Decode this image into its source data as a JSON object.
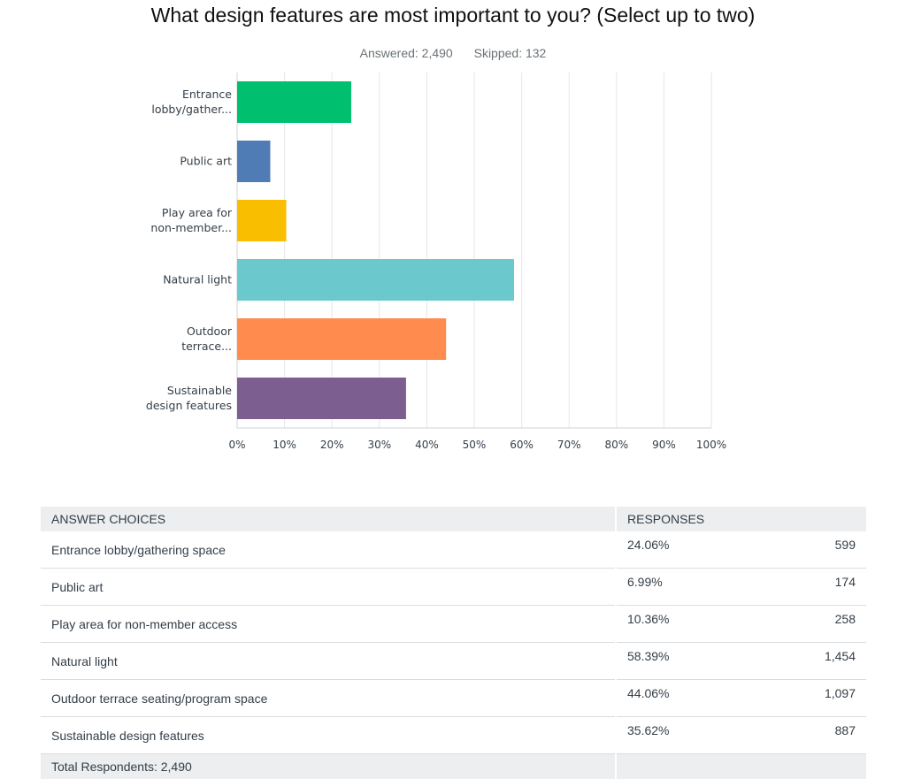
{
  "title": "What design features are most important to you? (Select up to two)",
  "answered": "Answered: 2,490",
  "skipped": "Skipped: 132",
  "colors": [
    "#00bf6f",
    "#507cb6",
    "#f9be00",
    "#6bc8cd",
    "#ff8b4f",
    "#7d5e90"
  ],
  "chart_data": {
    "type": "bar",
    "orientation": "horizontal",
    "categories": [
      [
        "Entrance",
        "lobby/gather..."
      ],
      [
        "Public art"
      ],
      [
        "Play area for",
        "non-member..."
      ],
      [
        "Natural light"
      ],
      [
        "Outdoor",
        "terrace..."
      ],
      [
        "Sustainable",
        "design features"
      ]
    ],
    "values": [
      24.06,
      6.99,
      10.36,
      58.39,
      44.06,
      35.62
    ],
    "xlim": [
      0,
      100
    ],
    "xticks": [
      "0%",
      "10%",
      "20%",
      "30%",
      "40%",
      "50%",
      "60%",
      "70%",
      "80%",
      "90%",
      "100%"
    ],
    "grid": true
  },
  "table": {
    "headers": [
      "ANSWER CHOICES",
      "RESPONSES"
    ],
    "rows": [
      {
        "choice": "Entrance lobby/gathering space",
        "pct": "24.06%",
        "count": "599"
      },
      {
        "choice": "Public art",
        "pct": "6.99%",
        "count": "174"
      },
      {
        "choice": "Play area for non-member access",
        "pct": "10.36%",
        "count": "258"
      },
      {
        "choice": "Natural light",
        "pct": "58.39%",
        "count": "1,454"
      },
      {
        "choice": "Outdoor terrace seating/program space",
        "pct": "44.06%",
        "count": "1,097"
      },
      {
        "choice": "Sustainable design features",
        "pct": "35.62%",
        "count": "887"
      }
    ],
    "total": "Total Respondents: 2,490"
  }
}
